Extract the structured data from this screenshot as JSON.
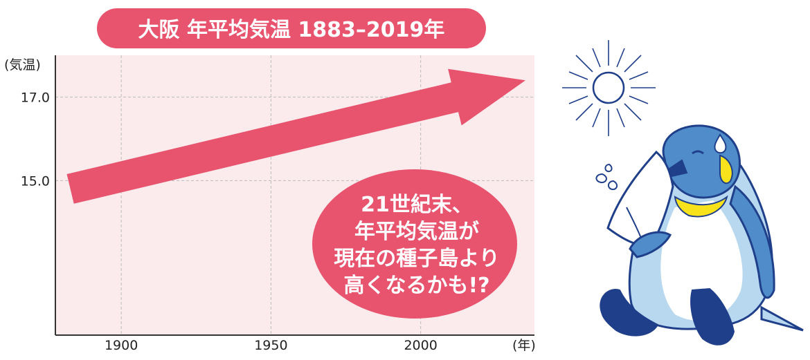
{
  "title": "大阪 年平均気温 1883–2019年",
  "callout": {
    "lines": [
      "21世紀末、",
      "年平均気温が",
      "現在の種子島より",
      "高くなるかも!?"
    ]
  },
  "colors": {
    "pink": "#e8536e",
    "plot_bg": "#fcebed",
    "grid": "#bbbbbb",
    "penguin_blue": "#4f8cc9",
    "penguin_light": "#b7d8ef",
    "penguin_navy": "#1f3f8a",
    "penguin_yellow": "#f7e21b"
  },
  "chart_data": {
    "type": "line",
    "title": "大阪 年平均気温 1883–2019年",
    "xlabel": "(年)",
    "ylabel": "(気温)",
    "xlim": [
      1878,
      2038
    ],
    "ylim": [
      11.3,
      18.0
    ],
    "x_ticks": [
      1900,
      1950,
      2000
    ],
    "x_tick_labels": [
      "1900",
      "1950",
      "2000"
    ],
    "y_ticks": [
      15.0,
      17.0
    ],
    "y_tick_labels": [
      "15.0",
      "17.0"
    ],
    "grid": true,
    "series": [
      {
        "x": [
          1883,
          2035
        ],
        "values": [
          14.8,
          17.4
        ]
      }
    ]
  }
}
